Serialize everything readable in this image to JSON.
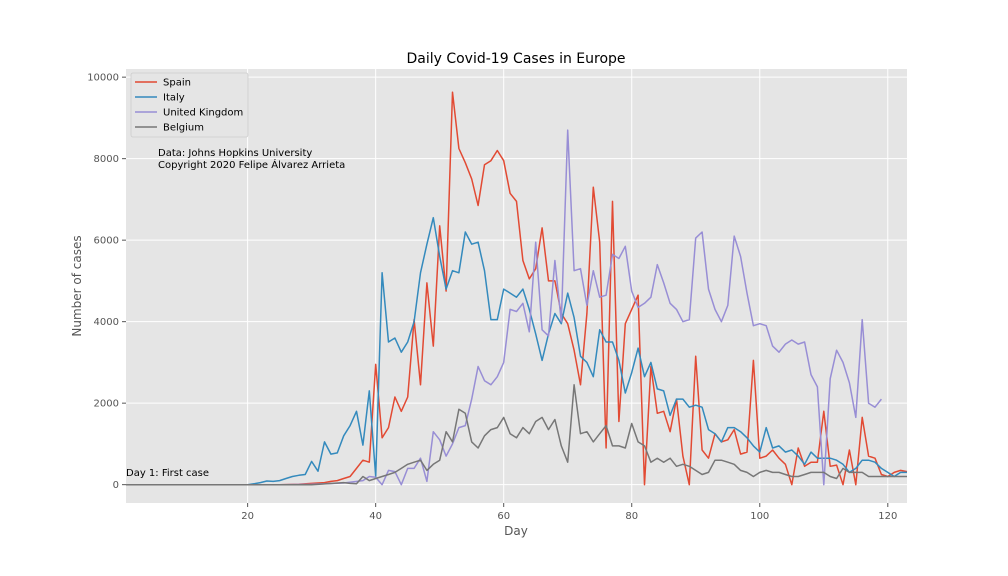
{
  "chart_data": {
    "type": "line",
    "title": "Daily Covid-19 Cases in Europe",
    "xlabel": "Day",
    "ylabel": "Number of cases",
    "xlim": [
      1,
      123
    ],
    "ylim": [
      -450,
      10200
    ],
    "xticks": [
      20,
      40,
      60,
      80,
      100,
      120
    ],
    "yticks": [
      0,
      2000,
      4000,
      6000,
      8000,
      10000
    ],
    "grid": true,
    "legend_position": "top-left",
    "annotations": {
      "source_line1": "Data: Johns Hopkins University",
      "source_line2": "Copyright 2020 Felipe Álvarez Arrieta",
      "first_case": "Day 1: First case"
    },
    "series": [
      {
        "name": "Spain",
        "color": "#E24A33",
        "x": [
          1,
          5,
          10,
          15,
          20,
          25,
          28,
          30,
          31,
          32,
          33,
          34,
          35,
          36,
          37,
          38,
          39,
          40,
          41,
          42,
          43,
          44,
          45,
          46,
          47,
          48,
          49,
          50,
          51,
          52,
          53,
          54,
          55,
          56,
          57,
          58,
          59,
          60,
          61,
          62,
          63,
          64,
          65,
          66,
          67,
          68,
          69,
          70,
          71,
          72,
          73,
          74,
          75,
          76,
          77,
          78,
          79,
          80,
          81,
          82,
          83,
          84,
          85,
          86,
          87,
          88,
          89,
          90,
          91,
          92,
          93,
          94,
          95,
          96,
          97,
          98,
          99,
          100,
          101,
          102,
          103,
          104,
          105,
          106,
          107,
          108,
          109,
          110,
          111,
          112,
          113,
          114,
          115,
          116,
          117,
          118,
          119,
          120,
          121,
          122,
          123
        ],
        "y": [
          0,
          0,
          0,
          0,
          0,
          0,
          10,
          30,
          40,
          50,
          80,
          100,
          150,
          200,
          400,
          600,
          550,
          2950,
          1150,
          1400,
          2150,
          1800,
          2150,
          4050,
          2450,
          4950,
          3400,
          6350,
          4750,
          9630,
          8250,
          7900,
          7500,
          6850,
          7850,
          7950,
          8200,
          7950,
          7150,
          6950,
          5500,
          5050,
          5300,
          6300,
          5000,
          5000,
          4200,
          3950,
          3300,
          2450,
          4200,
          7300,
          5950,
          900,
          6950,
          1550,
          3950,
          4300,
          4650,
          0,
          2900,
          1750,
          1800,
          1300,
          2100,
          700,
          0,
          3150,
          850,
          650,
          1250,
          1050,
          1100,
          1350,
          750,
          800,
          3050,
          650,
          700,
          850,
          650,
          500,
          0,
          900,
          450,
          550,
          550,
          1800,
          450,
          480,
          0,
          850,
          0,
          1650,
          700,
          650,
          250,
          200,
          300,
          350,
          320
        ]
      },
      {
        "name": "Italy",
        "color": "#348ABD",
        "x": [
          1,
          5,
          10,
          15,
          20,
          21,
          22,
          23,
          24,
          25,
          26,
          27,
          28,
          29,
          30,
          31,
          32,
          33,
          34,
          35,
          36,
          37,
          38,
          39,
          40,
          41,
          42,
          43,
          44,
          45,
          46,
          47,
          48,
          49,
          50,
          51,
          52,
          53,
          54,
          55,
          56,
          57,
          58,
          59,
          60,
          61,
          62,
          63,
          64,
          65,
          66,
          67,
          68,
          69,
          70,
          71,
          72,
          73,
          74,
          75,
          76,
          77,
          78,
          79,
          80,
          81,
          82,
          83,
          84,
          85,
          86,
          87,
          88,
          89,
          90,
          91,
          92,
          93,
          94,
          95,
          96,
          97,
          98,
          99,
          100,
          101,
          102,
          103,
          104,
          105,
          106,
          107,
          108,
          109,
          110,
          111,
          112,
          113,
          114,
          115,
          116,
          117,
          118,
          119,
          120,
          121,
          122,
          123
        ],
        "y": [
          0,
          0,
          0,
          0,
          0,
          20,
          50,
          90,
          80,
          100,
          150,
          200,
          230,
          250,
          570,
          330,
          1050,
          750,
          780,
          1200,
          1450,
          1800,
          970,
          2300,
          200,
          5200,
          3500,
          3600,
          3250,
          3500,
          4000,
          5200,
          5900,
          6550,
          5600,
          4800,
          5250,
          5200,
          6200,
          5900,
          5950,
          5250,
          4050,
          4050,
          4800,
          4700,
          4600,
          4800,
          4300,
          3700,
          3050,
          3700,
          4200,
          3950,
          4700,
          4100,
          3150,
          3000,
          2650,
          3800,
          3500,
          3500,
          3050,
          2250,
          2750,
          3350,
          2650,
          3000,
          2350,
          2300,
          1700,
          2100,
          2100,
          1900,
          1950,
          1900,
          1350,
          1250,
          1050,
          1400,
          1400,
          1300,
          1150,
          950,
          800,
          1400,
          900,
          950,
          800,
          850,
          700,
          500,
          800,
          650,
          650,
          650,
          600,
          500,
          300,
          400,
          600,
          600,
          550,
          400,
          300,
          200,
          300,
          300
        ]
      },
      {
        "name": "United Kingdom",
        "color": "#988ED5",
        "x": [
          1,
          5,
          10,
          15,
          20,
          25,
          30,
          35,
          38,
          39,
          40,
          41,
          42,
          43,
          44,
          45,
          46,
          47,
          48,
          49,
          50,
          51,
          52,
          53,
          54,
          55,
          56,
          57,
          58,
          59,
          60,
          61,
          62,
          63,
          64,
          65,
          66,
          67,
          68,
          69,
          70,
          71,
          72,
          73,
          74,
          75,
          76,
          77,
          78,
          79,
          80,
          81,
          82,
          83,
          84,
          85,
          86,
          87,
          88,
          89,
          90,
          91,
          92,
          93,
          94,
          95,
          96,
          97,
          98,
          99,
          100,
          101,
          102,
          103,
          104,
          105,
          106,
          107,
          108,
          109,
          110,
          111,
          112,
          113,
          114,
          115,
          116,
          117,
          118,
          119
        ],
        "y": [
          0,
          0,
          0,
          0,
          0,
          0,
          10,
          40,
          100,
          200,
          180,
          0,
          350,
          320,
          0,
          400,
          400,
          650,
          80,
          1300,
          1100,
          700,
          1000,
          1400,
          1450,
          2100,
          2900,
          2550,
          2450,
          2650,
          3000,
          4300,
          4250,
          4450,
          3750,
          5950,
          3800,
          3650,
          5500,
          4000,
          8700,
          5250,
          5300,
          4400,
          5250,
          4600,
          4650,
          5650,
          5550,
          5850,
          4750,
          4350,
          4450,
          4600,
          5400,
          4950,
          4450,
          4300,
          4000,
          4050,
          6050,
          6200,
          4800,
          4300,
          4000,
          4400,
          6100,
          5600,
          4700,
          3900,
          3950,
          3900,
          3400,
          3250,
          3450,
          3550,
          3450,
          3500,
          2700,
          2400,
          0,
          2600,
          3300,
          3000,
          2500,
          1650,
          4050,
          2000,
          1900,
          2100
        ]
      },
      {
        "name": "Belgium",
        "color": "#777777",
        "x": [
          1,
          5,
          10,
          15,
          20,
          25,
          30,
          35,
          36,
          37,
          38,
          39,
          40,
          41,
          42,
          43,
          44,
          45,
          46,
          47,
          48,
          49,
          50,
          51,
          52,
          53,
          54,
          55,
          56,
          57,
          58,
          59,
          60,
          61,
          62,
          63,
          64,
          65,
          66,
          67,
          68,
          69,
          70,
          71,
          72,
          73,
          74,
          75,
          76,
          77,
          78,
          79,
          80,
          81,
          82,
          83,
          84,
          85,
          86,
          87,
          88,
          89,
          90,
          91,
          92,
          93,
          94,
          95,
          96,
          97,
          98,
          99,
          100,
          101,
          102,
          103,
          104,
          105,
          106,
          107,
          108,
          109,
          110,
          111,
          112,
          113,
          114,
          115,
          116,
          117,
          118,
          119,
          120,
          121,
          122,
          123
        ],
        "y": [
          0,
          0,
          0,
          0,
          0,
          0,
          0,
          50,
          30,
          20,
          200,
          100,
          150,
          200,
          250,
          300,
          400,
          500,
          550,
          600,
          350,
          500,
          600,
          1300,
          1050,
          1850,
          1750,
          1050,
          900,
          1200,
          1350,
          1400,
          1650,
          1250,
          1150,
          1400,
          1250,
          1550,
          1650,
          1350,
          1600,
          950,
          550,
          2450,
          1250,
          1300,
          1050,
          1250,
          1450,
          950,
          950,
          900,
          1500,
          1050,
          950,
          550,
          650,
          550,
          650,
          450,
          500,
          450,
          350,
          250,
          300,
          600,
          600,
          550,
          500,
          350,
          300,
          200,
          300,
          350,
          300,
          300,
          250,
          200,
          200,
          250,
          300,
          300,
          300,
          200,
          150,
          400,
          300,
          300,
          300,
          200,
          200,
          200,
          200,
          200,
          200,
          200
        ]
      }
    ]
  }
}
